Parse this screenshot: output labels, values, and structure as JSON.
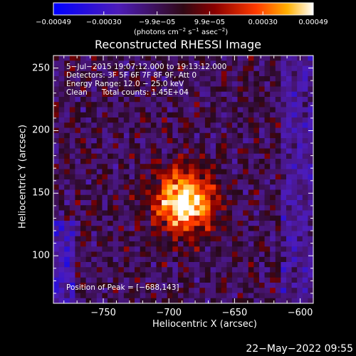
{
  "chart_data": {
    "type": "heatmap",
    "title": "Reconstructed RHESSI Image",
    "xlabel": "Heliocentric X (arcsec)",
    "ylabel": "Heliocentric Y (arcsec)",
    "xlim": [
      -788,
      -590
    ],
    "ylim": [
      62,
      260
    ],
    "xticks": [
      -750,
      -700,
      -650,
      -600
    ],
    "yticks": [
      100,
      150,
      200,
      250
    ],
    "xtick_labels": [
      "−750",
      "−700",
      "−650",
      "−600"
    ],
    "ytick_labels": [
      "100",
      "150",
      "200",
      "250"
    ],
    "colorbar": {
      "range": [
        -0.00049,
        0.00049
      ],
      "tick_values": [
        -0.00049,
        -0.0003,
        -9.9e-05,
        9.9e-05,
        0.0003,
        0.00049
      ],
      "tick_labels": [
        "−0.00049",
        "−0.00030",
        "−9.9e−05",
        "9.9e−05",
        "0.00030",
        "0.00049"
      ],
      "unit_prefix": "(photons cm",
      "unit_exp1": "−2",
      "unit_mid1": " s",
      "unit_exp2": "−1",
      "unit_mid2": " asec",
      "unit_exp3": "−2",
      "unit_suffix": ")"
    },
    "annotations": {
      "time_range": "5−Jul−2015 19:07:12.000 to 19:13:12.000",
      "detectors": "Detectors: 3F 5F 6F 7F 8F 9F, Att 0",
      "energy": "Energy Range: 12.0 − 25.0 keV",
      "clean_label": "Clean",
      "total_counts": "Total counts: 1.45E+04",
      "peak": "Position of Peak = [−688,143]"
    },
    "peak_position": [
      -688,
      143
    ]
  },
  "footer": {
    "date": "22−May−2022 09:55"
  }
}
